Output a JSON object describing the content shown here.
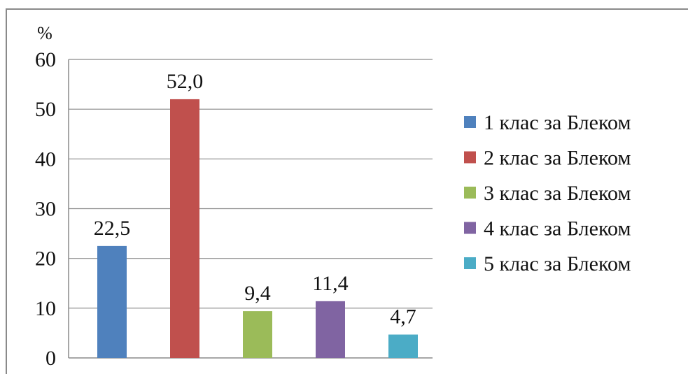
{
  "chart_data": {
    "type": "bar",
    "ylabel": "%",
    "ylim": [
      0,
      60
    ],
    "yticks": [
      "0",
      "10",
      "20",
      "30",
      "40",
      "50",
      "60"
    ],
    "grid": true,
    "legend_position": "right",
    "categories": [
      "1 клас за Блеком",
      "2 клас за Блеком",
      "3 клас за Блеком",
      "4 клас за Блеком",
      "5 клас за Блеком"
    ],
    "values": [
      22.5,
      52.0,
      9.4,
      11.4,
      4.7
    ],
    "value_labels": [
      "22,5",
      "52,0",
      "9,4",
      "11,4",
      "4,7"
    ],
    "colors": [
      "#4f81bd",
      "#c0504d",
      "#9bbb59",
      "#8064a2",
      "#4bacc6"
    ]
  }
}
